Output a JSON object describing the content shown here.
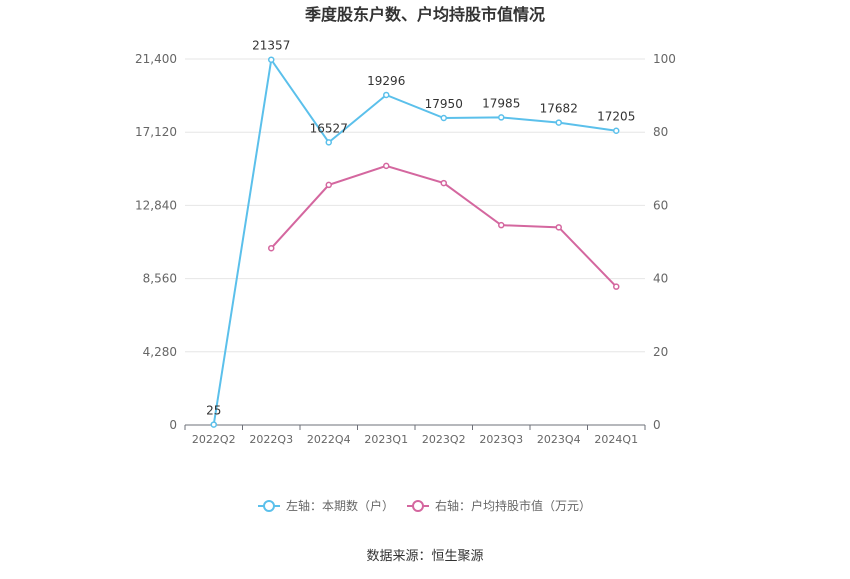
{
  "chart_data": {
    "type": "line",
    "title": "季度股东户数、户均持股市值情况",
    "categories": [
      "2022Q2",
      "2022Q3",
      "2022Q4",
      "2023Q1",
      "2023Q2",
      "2023Q3",
      "2023Q4",
      "2024Q1"
    ],
    "left_axis": {
      "ticks": [
        "0",
        "4,280",
        "8,560",
        "12,840",
        "17,120",
        "21,400"
      ],
      "min": 0,
      "max": 21400
    },
    "right_axis": {
      "ticks": [
        "0",
        "20",
        "40",
        "60",
        "80",
        "100"
      ],
      "min": 0,
      "max": 100
    },
    "series": [
      {
        "name": "左轴：本期数（户）",
        "axis": "left",
        "color": "#5bc0eb",
        "values": [
          25,
          21357,
          16527,
          19296,
          17950,
          17985,
          17682,
          17205
        ],
        "labels": [
          "25",
          "21357",
          "16527",
          "19296",
          "17950",
          "17985",
          "17682",
          "17205"
        ]
      },
      {
        "name": "右轴：户均持股市值（万元）",
        "axis": "right",
        "color": "#d4679f",
        "values": [
          null,
          48.3,
          65.6,
          70.8,
          66.1,
          54.6,
          54.0,
          37.8
        ]
      }
    ],
    "grid": true,
    "legend_position": "bottom-center",
    "source": "数据来源：恒生聚源"
  }
}
